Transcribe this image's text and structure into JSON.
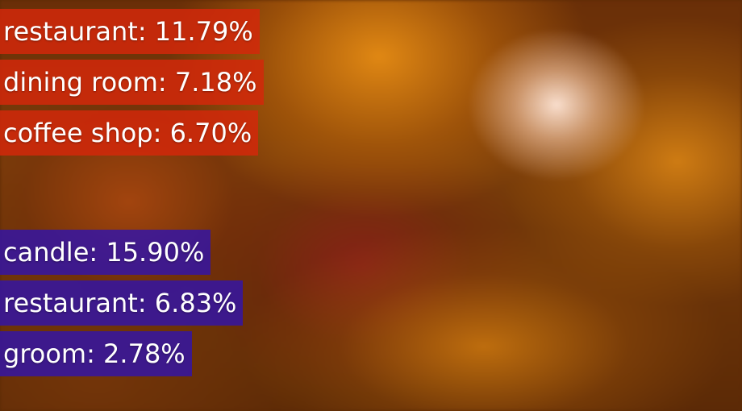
{
  "scene_predictions": [
    {
      "label": "restaurant",
      "percent": "11.79%"
    },
    {
      "label": "dining room",
      "percent": "7.18%"
    },
    {
      "label": "coffee shop",
      "percent": "6.70%"
    }
  ],
  "object_predictions": [
    {
      "label": "candle",
      "percent": "15.90%"
    },
    {
      "label": "restaurant",
      "percent": "6.83%"
    },
    {
      "label": "groom",
      "percent": "2.78%"
    }
  ],
  "colors": {
    "scene_label_bg": "#d2280a",
    "object_label_bg": "#3214aa",
    "text": "#ffffff"
  }
}
